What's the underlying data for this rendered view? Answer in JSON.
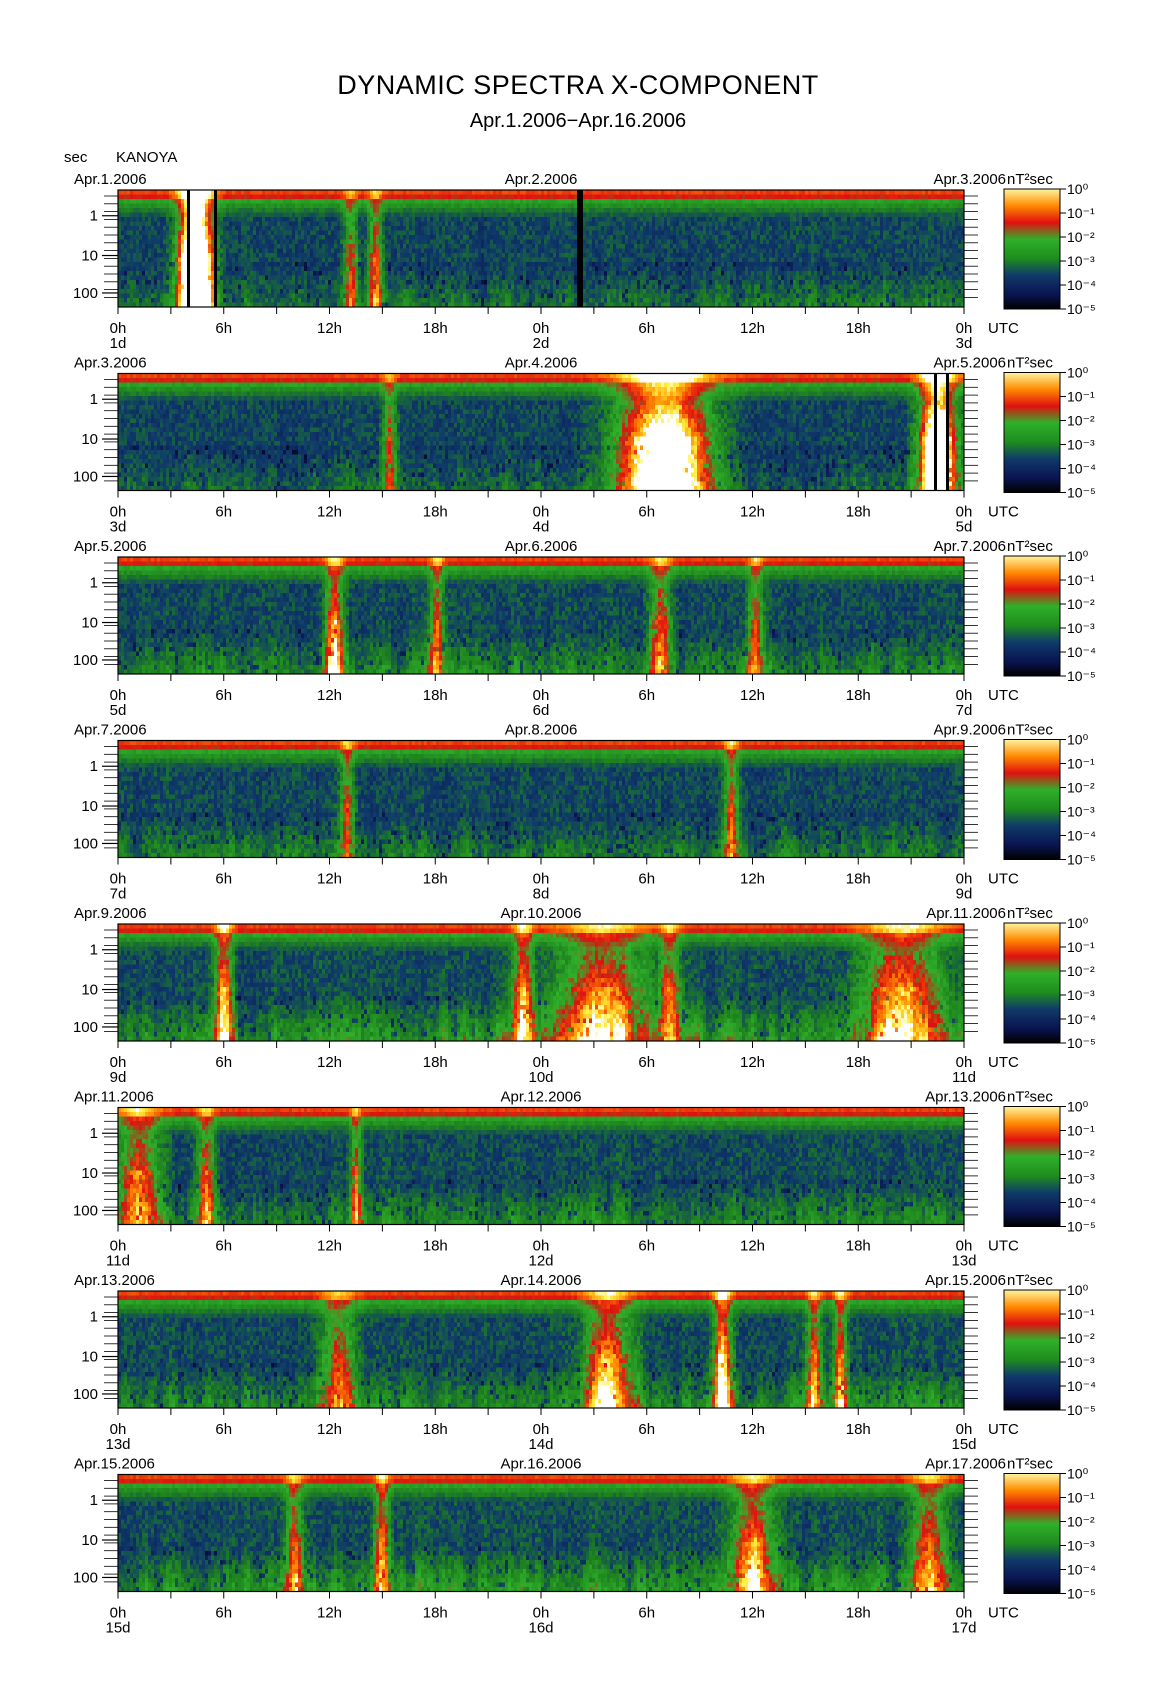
{
  "header": {
    "title": "DYNAMIC SPECTRA X-COMPONENT",
    "subtitle": "Apr.1.2006−Apr.16.2006",
    "y_unit": "sec",
    "station": "KANOYA"
  },
  "colors": {
    "black": "#000000",
    "navy": "#0a1450",
    "green": "#1e8c1e",
    "red": "#e01010",
    "orange": "#ff8a00",
    "yellow": "#ffee40",
    "white": "#ffffff"
  },
  "chart_data": {
    "type": "heatmap",
    "y_ticks": [
      "1",
      "10",
      "100"
    ],
    "y_unit": "sec",
    "x_ticks": [
      "0h",
      "6h",
      "12h",
      "18h",
      "0h",
      "6h",
      "12h",
      "18h",
      "0h"
    ],
    "x_unit": "UTC",
    "color_unit": "nT²sec",
    "colorbar_ticks": [
      "10⁰",
      "10⁻¹",
      "10⁻²",
      "10⁻³",
      "10⁻⁴",
      "10⁻⁵"
    ],
    "panels": [
      {
        "date_left": "Apr.1.2006",
        "date_mid": "Apr.2.2006",
        "date_right": "Apr.3.2006",
        "day_labels": [
          "1d",
          "2d",
          "3d"
        ],
        "seed": 11,
        "activity": 0.45,
        "events": [
          {
            "t": 4.4,
            "w": 0.9,
            "a": 2.6
          },
          {
            "t": 14.6,
            "w": 0.4,
            "a": 0.9
          },
          {
            "t": 13.2,
            "w": 0.4,
            "a": 0.8
          }
        ],
        "gaps": [
          [
            3.9,
            4.1
          ],
          [
            5.4,
            5.6
          ],
          [
            26.0,
            26.3
          ]
        ]
      },
      {
        "date_left": "Apr.3.2006",
        "date_mid": "Apr.4.2006",
        "date_right": "Apr.5.2006",
        "day_labels": [
          "3d",
          "4d",
          "5d"
        ],
        "seed": 23,
        "activity": 0.4,
        "events": [
          {
            "t": 31.0,
            "w": 2.5,
            "a": 1.8
          },
          {
            "t": 46.5,
            "w": 1.0,
            "a": 2.0
          },
          {
            "t": 15.4,
            "w": 0.4,
            "a": 0.8
          }
        ],
        "gaps": [
          [
            46.3,
            46.5
          ],
          [
            46.9,
            47.1
          ]
        ]
      },
      {
        "date_left": "Apr.5.2006",
        "date_mid": "Apr.6.2006",
        "date_right": "Apr.7.2006",
        "day_labels": [
          "5d",
          "6d",
          "7d"
        ],
        "seed": 37,
        "activity": 0.6,
        "events": [
          {
            "t": 12.3,
            "w": 0.5,
            "a": 1.1
          },
          {
            "t": 18.1,
            "w": 0.4,
            "a": 0.9
          },
          {
            "t": 30.8,
            "w": 0.6,
            "a": 0.9
          },
          {
            "t": 36.2,
            "w": 0.4,
            "a": 0.9
          }
        ],
        "gaps": []
      },
      {
        "date_left": "Apr.7.2006",
        "date_mid": "Apr.8.2006",
        "date_right": "Apr.9.2006",
        "day_labels": [
          "7d",
          "8d",
          "9d"
        ],
        "seed": 41,
        "activity": 0.5,
        "events": [
          {
            "t": 13.0,
            "w": 0.4,
            "a": 0.9
          },
          {
            "t": 34.8,
            "w": 0.4,
            "a": 0.9
          }
        ],
        "gaps": []
      },
      {
        "date_left": "Apr.9.2006",
        "date_mid": "Apr.10.2006",
        "date_right": "Apr.11.2006",
        "day_labels": [
          "9d",
          "10d",
          "11d"
        ],
        "seed": 53,
        "activity": 0.75,
        "events": [
          {
            "t": 6.0,
            "w": 0.5,
            "a": 1.2
          },
          {
            "t": 23.0,
            "w": 0.6,
            "a": 1.1
          },
          {
            "t": 27.5,
            "w": 2.5,
            "a": 1.0
          },
          {
            "t": 31.3,
            "w": 0.6,
            "a": 1.0
          },
          {
            "t": 44.5,
            "w": 2.2,
            "a": 1.1
          }
        ],
        "gaps": []
      },
      {
        "date_left": "Apr.11.2006",
        "date_mid": "Apr.12.2006",
        "date_right": "Apr.13.2006",
        "day_labels": [
          "11d",
          "12d",
          "13d"
        ],
        "seed": 67,
        "activity": 0.6,
        "events": [
          {
            "t": 1.2,
            "w": 1.2,
            "a": 1.0
          },
          {
            "t": 5.0,
            "w": 0.5,
            "a": 0.9
          },
          {
            "t": 13.5,
            "w": 0.3,
            "a": 0.9
          }
        ],
        "gaps": []
      },
      {
        "date_left": "Apr.13.2006",
        "date_mid": "Apr.14.2006",
        "date_right": "Apr.15.2006",
        "day_labels": [
          "13d",
          "14d",
          "15d"
        ],
        "seed": 79,
        "activity": 0.65,
        "events": [
          {
            "t": 34.3,
            "w": 0.5,
            "a": 1.4
          },
          {
            "t": 27.8,
            "w": 1.3,
            "a": 1.1
          },
          {
            "t": 39.5,
            "w": 0.4,
            "a": 1.0
          },
          {
            "t": 41.0,
            "w": 0.4,
            "a": 1.0
          },
          {
            "t": 12.5,
            "w": 1.0,
            "a": 0.8
          }
        ],
        "gaps": []
      },
      {
        "date_left": "Apr.15.2006",
        "date_mid": "Apr.16.2006",
        "date_right": "Apr.17.2006",
        "day_labels": [
          "15d",
          "16d",
          "17d"
        ],
        "seed": 97,
        "activity": 0.7,
        "events": [
          {
            "t": 15.0,
            "w": 0.4,
            "a": 1.1
          },
          {
            "t": 10.0,
            "w": 0.5,
            "a": 0.9
          },
          {
            "t": 36.0,
            "w": 1.2,
            "a": 1.0
          },
          {
            "t": 46.0,
            "w": 1.0,
            "a": 0.9
          }
        ],
        "gaps": []
      }
    ]
  }
}
